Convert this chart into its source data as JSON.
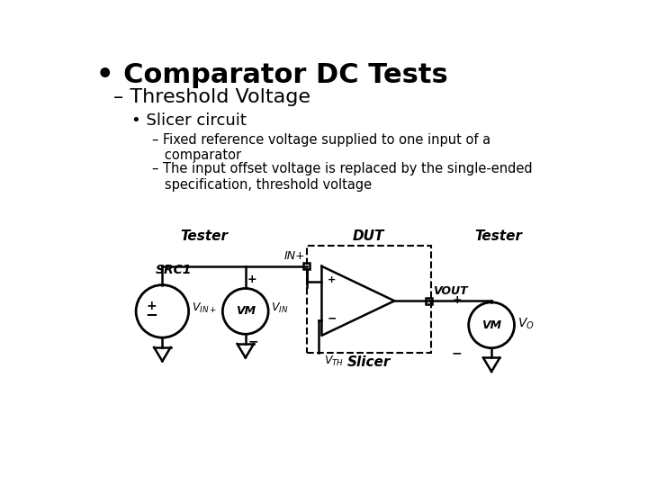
{
  "title_bullet": "• Comparator DC Tests",
  "subtitle": "– Threshold Voltage",
  "sub_bullet": "• Slicer circuit",
  "point1": "– Fixed reference voltage supplied to one input of a\n   comparator",
  "point2": "– The input offset voltage is replaced by the single-ended\n   specification, threshold voltage",
  "bg_color": "#ffffff",
  "text_color": "#000000",
  "lw": 1.8
}
